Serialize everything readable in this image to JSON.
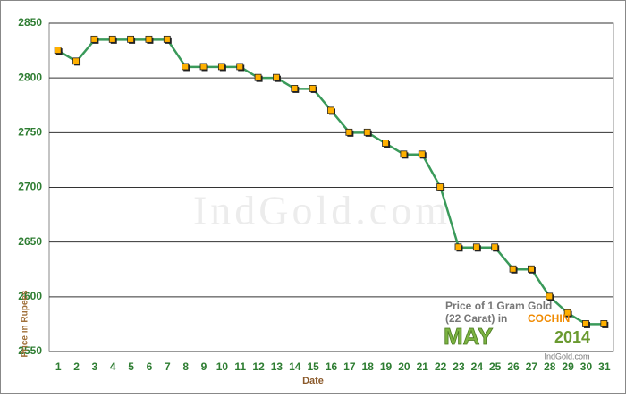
{
  "chart_data": {
    "type": "line",
    "x_label": "Date",
    "y_label": "Price in Rupees",
    "categories": [
      "1",
      "2",
      "3",
      "4",
      "5",
      "6",
      "7",
      "8",
      "9",
      "10",
      "11",
      "12",
      "13",
      "14",
      "15",
      "16",
      "17",
      "18",
      "19",
      "20",
      "21",
      "22",
      "23",
      "24",
      "25",
      "26",
      "27",
      "28",
      "29",
      "30",
      "31"
    ],
    "series": [
      {
        "name": "Price of 1 Gram Gold",
        "color": "#3a9a5a",
        "values": [
          2825,
          2815,
          2835,
          2835,
          2835,
          2835,
          2835,
          2810,
          2810,
          2810,
          2810,
          2800,
          2800,
          2790,
          2790,
          2770,
          2750,
          2750,
          2740,
          2730,
          2730,
          2700,
          2645,
          2645,
          2645,
          2625,
          2625,
          2600,
          2585,
          2575,
          2575
        ]
      }
    ],
    "marker_color": "#ffb000",
    "ylim": [
      2550,
      2850
    ],
    "yticks": [
      2550,
      2600,
      2650,
      2700,
      2750,
      2800,
      2850
    ],
    "grid": true,
    "watermark": "IndGold.com",
    "annotations": {
      "line1": "Price of 1 Gram Gold",
      "line2": "(22 Carat) in",
      "city": "COCHIN",
      "month": "MAY",
      "year": "2014",
      "site": "IndGold.com"
    }
  }
}
